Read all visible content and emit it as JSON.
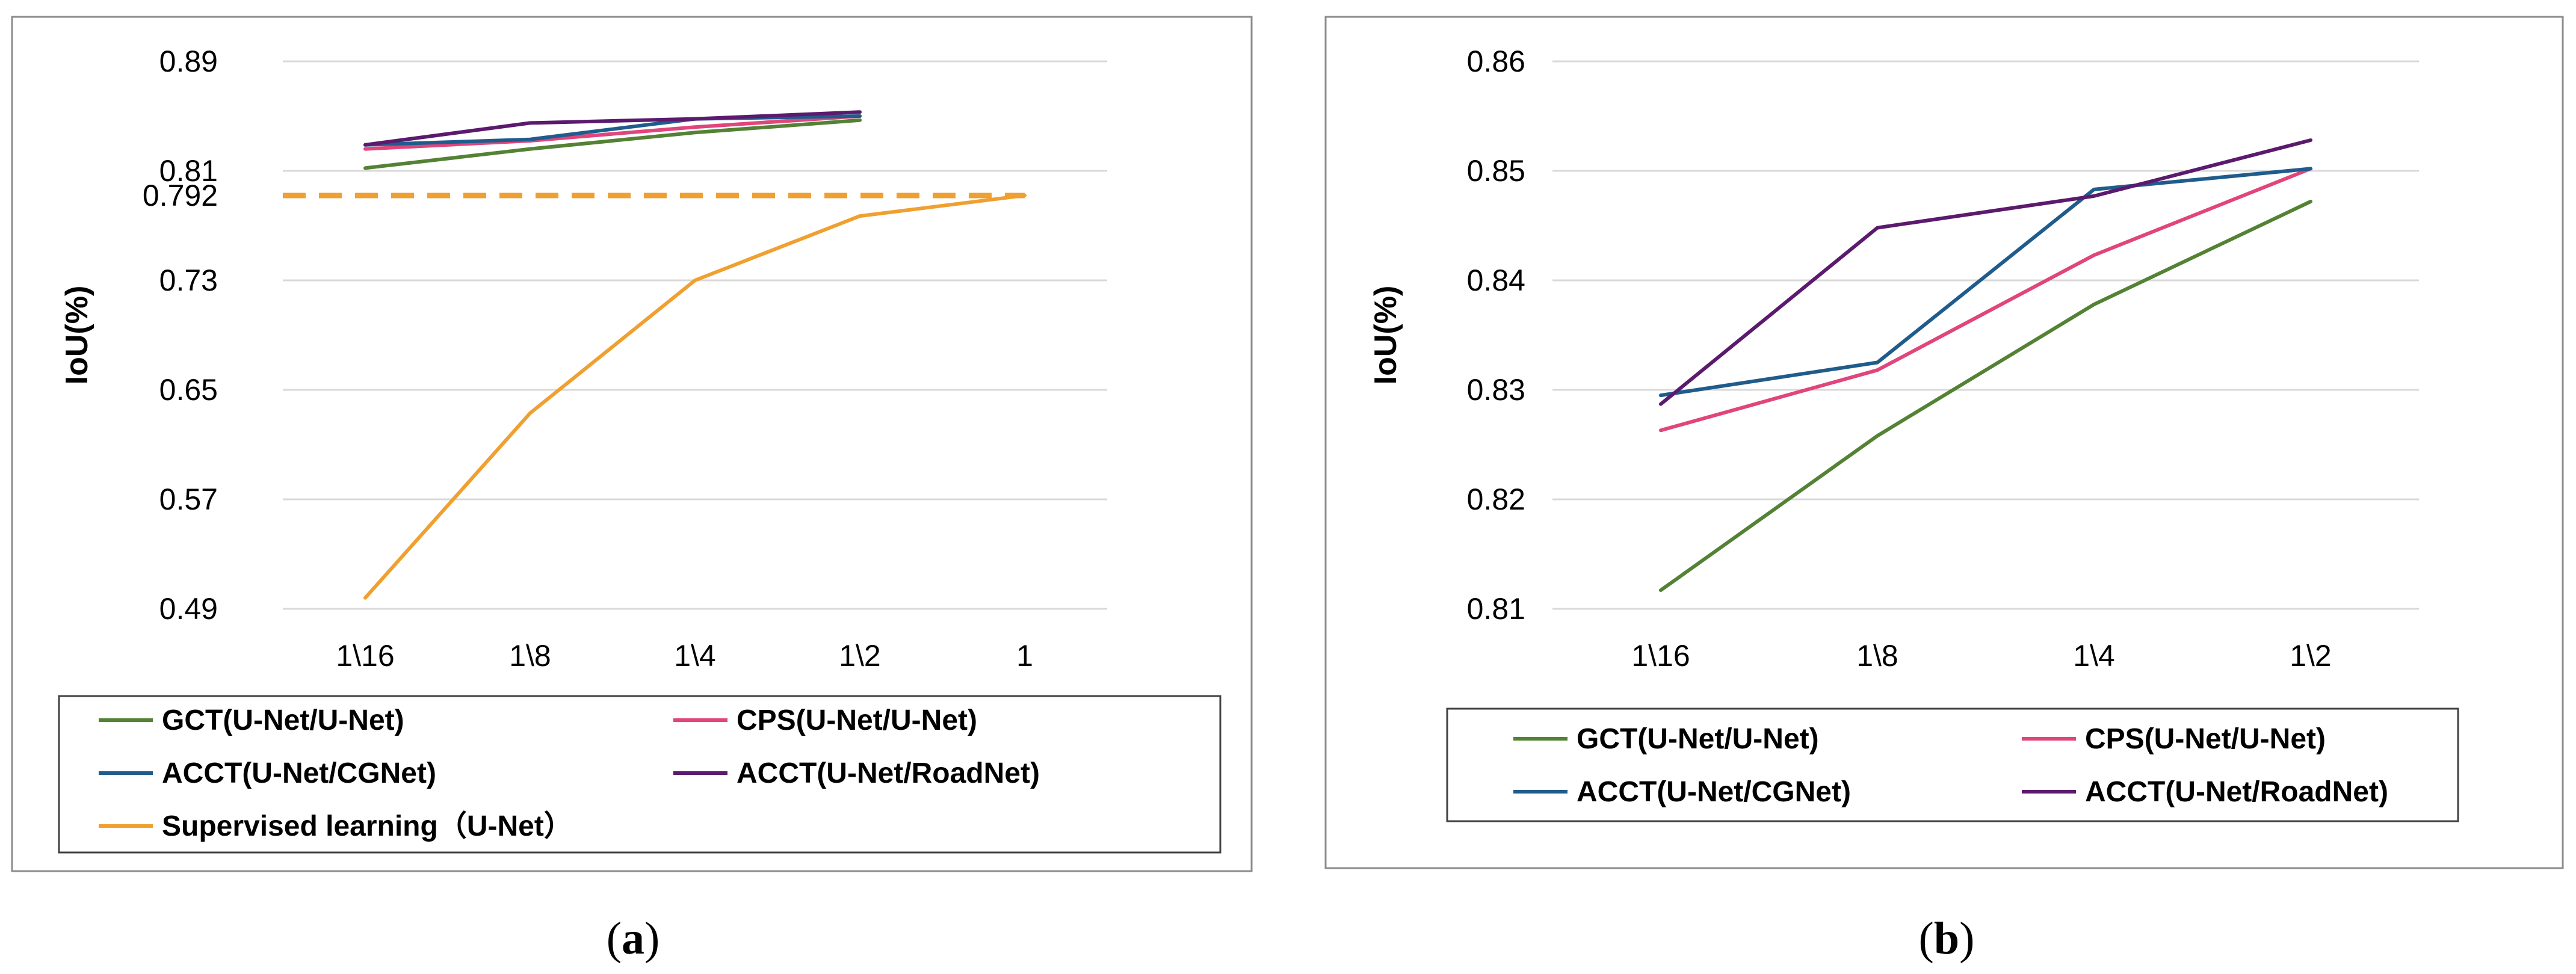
{
  "chart_data": [
    {
      "panel": "a",
      "type": "line",
      "ylabel": "IoU(%)",
      "ylim": [
        0.49,
        0.89
      ],
      "yticks": [
        "0.89",
        "0.81",
        "0.73",
        "0.65",
        "0.57",
        "0.49"
      ],
      "ytick_values": [
        0.89,
        0.81,
        0.73,
        0.65,
        0.57,
        0.49
      ],
      "extra_ytick": {
        "label": "0.792",
        "value": 0.792
      },
      "categories": [
        "1\\16",
        "1\\8",
        "1\\4",
        "1\\2",
        "1"
      ],
      "series": [
        {
          "name": "GCT(U-Net/U-Net)",
          "color": "#548235",
          "values": [
            0.812,
            0.826,
            0.838,
            0.847,
            null
          ]
        },
        {
          "name": "CPS(U-Net/U-Net)",
          "color": "#E0457B",
          "values": [
            0.826,
            0.832,
            0.842,
            0.85,
            null
          ]
        },
        {
          "name": "ACCT(U-Net/CGNet)",
          "color": "#1F5C8C",
          "values": [
            0.829,
            0.833,
            0.848,
            0.85,
            null
          ]
        },
        {
          "name": "ACCT(U-Net/RoadNet)",
          "color": "#5B1A6E",
          "values": [
            0.829,
            0.845,
            0.848,
            0.853,
            null
          ]
        },
        {
          "name": "Supervised learning（U-Net）",
          "color": "#F0A030",
          "values": [
            0.498,
            0.633,
            0.73,
            0.777,
            0.792
          ]
        }
      ],
      "reference_line": {
        "value": 0.792,
        "color": "#F0A030",
        "style": "dashed"
      },
      "legend_position": "bottom"
    },
    {
      "panel": "b",
      "type": "line",
      "ylabel": "IoU(%)",
      "ylim": [
        0.81,
        0.86
      ],
      "yticks": [
        "0.86",
        "0.85",
        "0.84",
        "0.83",
        "0.82",
        "0.81"
      ],
      "ytick_values": [
        0.86,
        0.85,
        0.84,
        0.83,
        0.82,
        0.81
      ],
      "categories": [
        "1\\16",
        "1\\8",
        "1\\4",
        "1\\2"
      ],
      "series": [
        {
          "name": "GCT(U-Net/U-Net)",
          "color": "#548235",
          "values": [
            0.8117,
            0.8258,
            0.8378,
            0.8472
          ]
        },
        {
          "name": "CPS(U-Net/U-Net)",
          "color": "#E0457B",
          "values": [
            0.8263,
            0.8318,
            0.8423,
            0.8502
          ]
        },
        {
          "name": "ACCT(U-Net/CGNet)",
          "color": "#1F5C8C",
          "values": [
            0.8295,
            0.8325,
            0.8483,
            0.8502
          ]
        },
        {
          "name": "ACCT(U-Net/RoadNet)",
          "color": "#5B1A6E",
          "values": [
            0.8287,
            0.8448,
            0.8477,
            0.8528
          ]
        }
      ],
      "legend_position": "bottom"
    }
  ],
  "captions": {
    "a": "(a)",
    "a_letter": "a",
    "b": "(b)",
    "b_letter": "b"
  }
}
